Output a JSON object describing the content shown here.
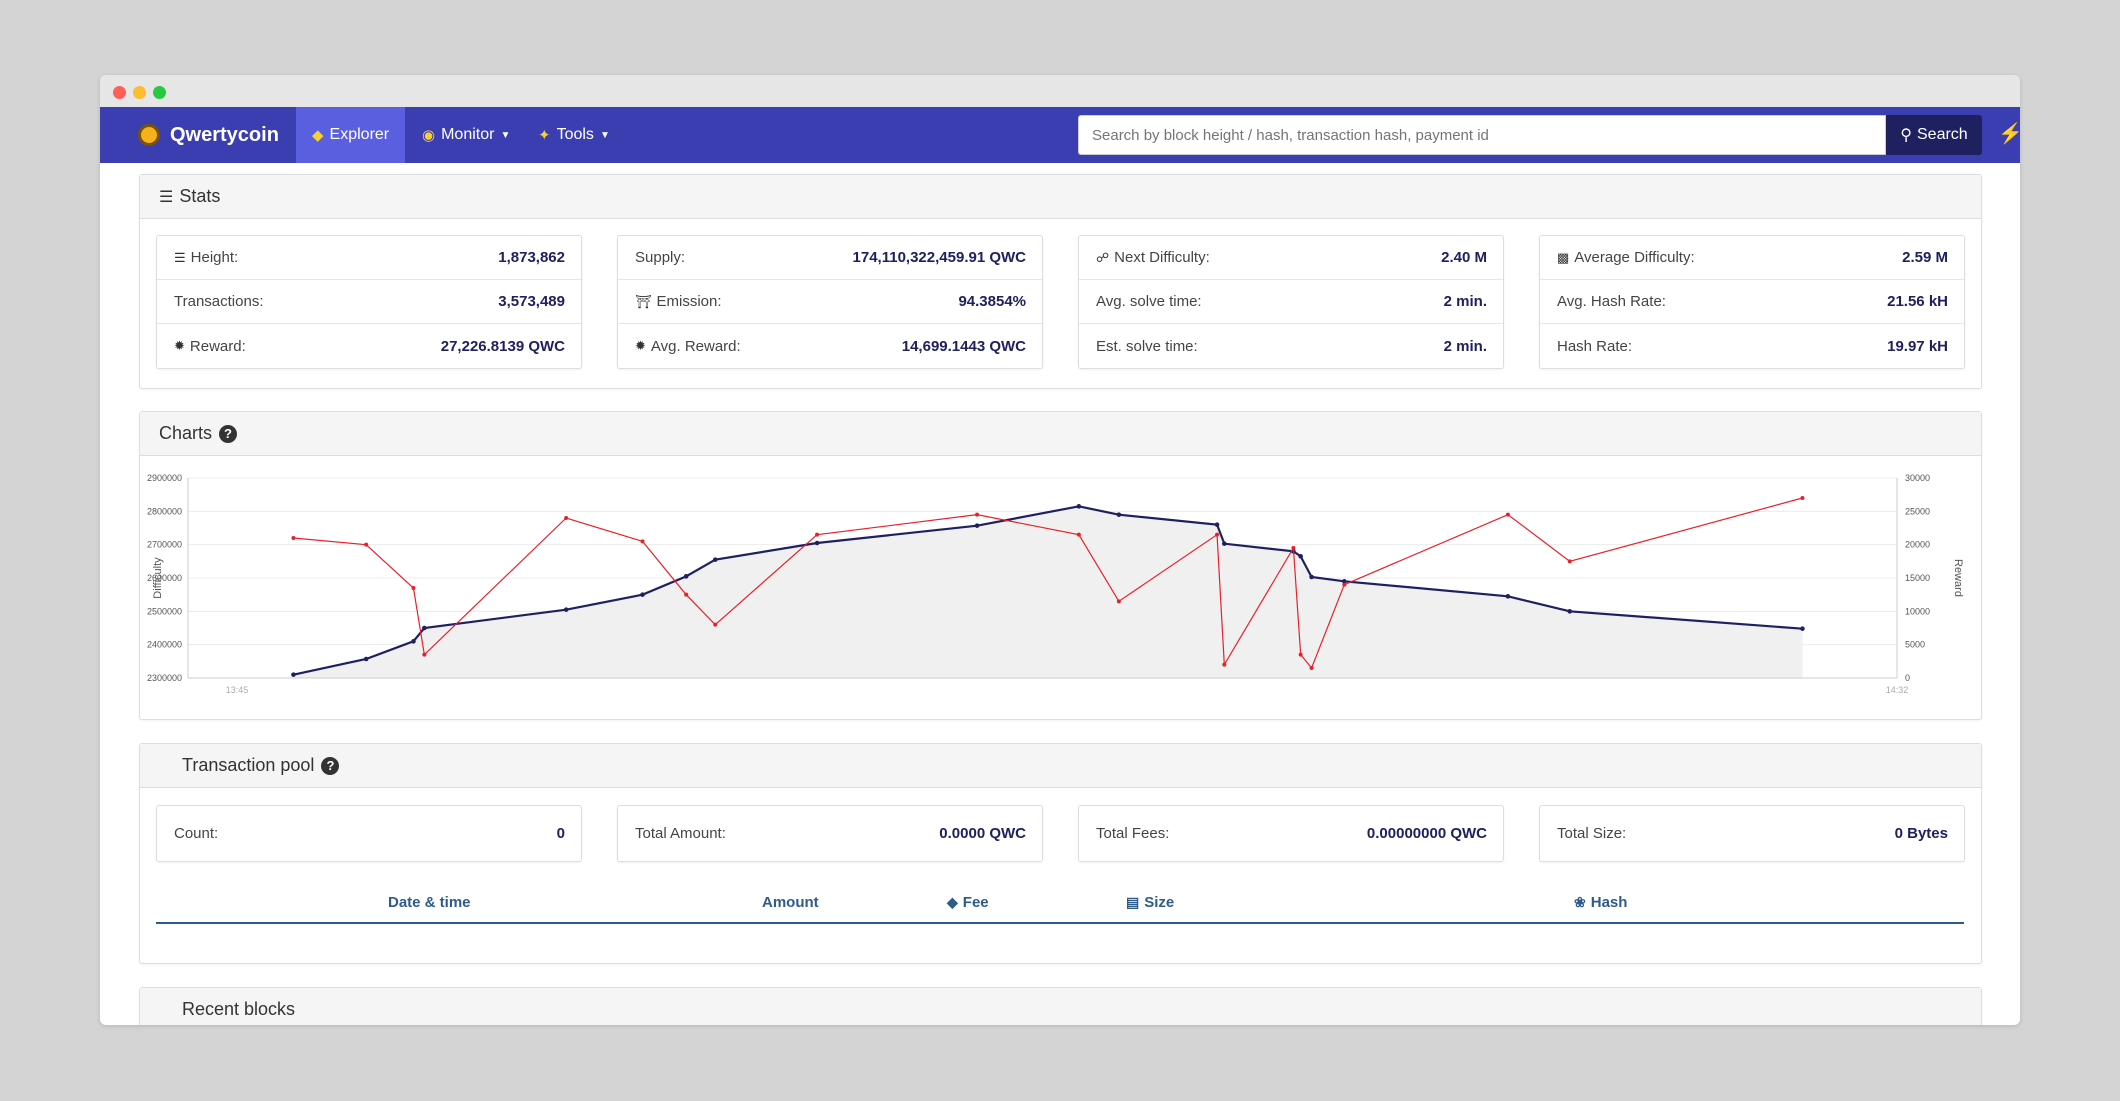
{
  "brand": {
    "name": "Qwertycoin"
  },
  "nav": {
    "explorer": "Explorer",
    "monitor": "Monitor",
    "tools": "Tools",
    "search_placeholder": "Search by block height / hash, transaction hash, payment id",
    "search_button": "Search"
  },
  "stats": {
    "title": "Stats",
    "boxes": [
      [
        {
          "label": "Height:",
          "value": "1,873,862"
        },
        {
          "label": "Transactions:",
          "value": "3,573,489"
        },
        {
          "label": "Reward:",
          "value": "27,226.8139 QWC"
        }
      ],
      [
        {
          "label": "Supply:",
          "value": "174,110,322,459.91 QWC"
        },
        {
          "label": "Emission:",
          "value": "94.3854%"
        },
        {
          "label": "Avg. Reward:",
          "value": "14,699.1443 QWC"
        }
      ],
      [
        {
          "label": "Next Difficulty:",
          "value": "2.40 M"
        },
        {
          "label": "Avg. solve time:",
          "value": "2 min."
        },
        {
          "label": "Est. solve time:",
          "value": "2 min."
        }
      ],
      [
        {
          "label": "Average Difficulty:",
          "value": "2.59 M"
        },
        {
          "label": "Avg. Hash Rate:",
          "value": "21.56 kH"
        },
        {
          "label": "Hash Rate:",
          "value": "19.97 kH"
        }
      ]
    ]
  },
  "charts": {
    "title": "Charts",
    "help_icon": "question-circle-icon"
  },
  "chart_data": {
    "type": "line",
    "xlabel": "",
    "ylabel": "Difficulty",
    "y2label": "Reward",
    "ylim": [
      2300000,
      2900000
    ],
    "y2lim": [
      0,
      30000
    ],
    "yticks": [
      "2300000",
      "2400000",
      "2500000",
      "2600000",
      "2700000",
      "2800000",
      "2900000"
    ],
    "y2ticks": [
      "0",
      "5000",
      "10000",
      "15000",
      "20000",
      "25000",
      "30000"
    ],
    "xticks": [
      "13:45",
      "14:32"
    ],
    "x": [
      2.9,
      4.9,
      6.2,
      6.5,
      10.4,
      12.5,
      13.7,
      14.5,
      17.3,
      21.7,
      24.5,
      25.6,
      28.3,
      28.5,
      30.4,
      30.6,
      30.9,
      31.8,
      36.3,
      38.0,
      44.4
    ],
    "series": [
      {
        "values": [
          2310000,
          2357000,
          2410000,
          2450000,
          2505000,
          2550000,
          2605000,
          2655000,
          2705000,
          2757000,
          2815000,
          2790000,
          2760000,
          2703000,
          2680000,
          2665000,
          2603000,
          2590000,
          2545000,
          2500000,
          2448000
        ]
      },
      {
        "values": [
          21000,
          20000,
          13500,
          3500,
          24000,
          20500,
          12500,
          8000,
          21500,
          24500,
          21500,
          11500,
          21500,
          2000,
          19500,
          3500,
          1500,
          14000,
          24500,
          17500,
          27000
        ]
      }
    ]
  },
  "pool": {
    "title": "Transaction pool",
    "boxes": [
      {
        "label": "Count:",
        "value": "0"
      },
      {
        "label": "Total Amount:",
        "value": "0.0000 QWC"
      },
      {
        "label": "Total Fees:",
        "value": "0.00000000 QWC"
      },
      {
        "label": "Total Size:",
        "value": "0 Bytes"
      }
    ],
    "columns": [
      "Date & time",
      "Amount",
      "Fee",
      "Size",
      "Hash"
    ]
  },
  "recent": {
    "title": "Recent blocks"
  }
}
